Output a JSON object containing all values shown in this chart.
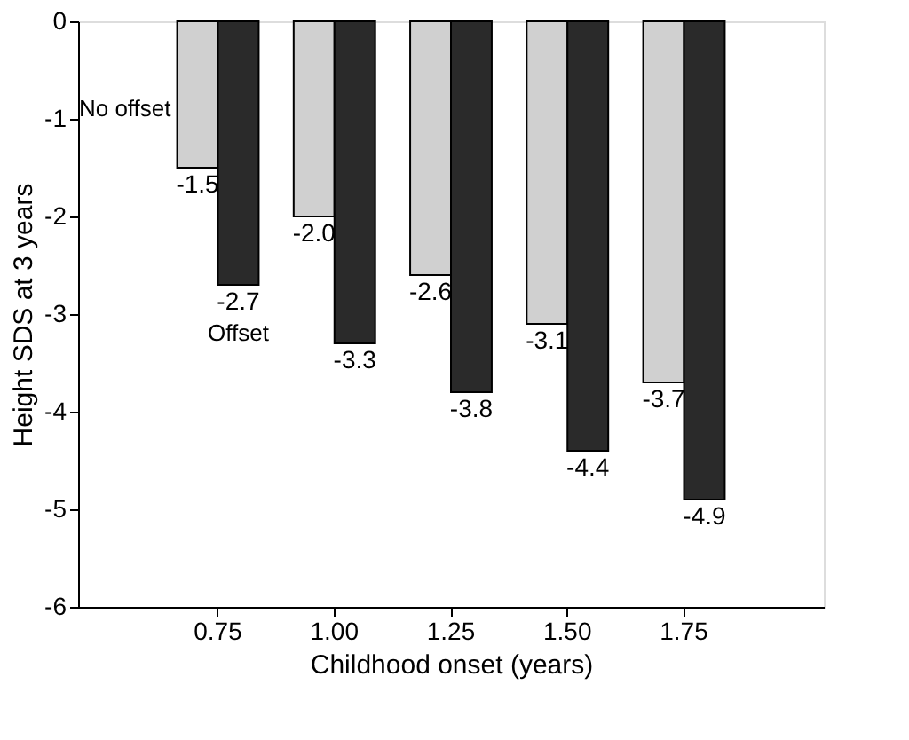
{
  "chart_data": {
    "type": "bar",
    "xlabel": "Childhood onset (years)",
    "ylabel": "Height SDS at 3 years",
    "categories": [
      "0.75",
      "1.00",
      "1.25",
      "1.50",
      "1.75"
    ],
    "series": [
      {
        "name": "No offset",
        "color": "#d0d0d0",
        "values": [
          -1.5,
          -2.0,
          -2.6,
          -3.1,
          -3.7
        ],
        "value_labels": [
          "-1.5",
          "-2.0",
          "-2.6",
          "-3.1",
          "-3.7"
        ]
      },
      {
        "name": "Offset",
        "color": "#2a2a2a",
        "values": [
          -2.7,
          -3.3,
          -3.8,
          -4.4,
          -4.9
        ],
        "value_labels": [
          "-2.7",
          "-3.3",
          "-3.8",
          "-4.4",
          "-4.9"
        ]
      }
    ],
    "ylim": [
      -6,
      0
    ],
    "yticks": [
      {
        "value": 0,
        "label": "0"
      },
      {
        "value": -1,
        "label": "-1"
      },
      {
        "value": -2,
        "label": "-2"
      },
      {
        "value": -3,
        "label": "-3"
      },
      {
        "value": -4,
        "label": "-4"
      },
      {
        "value": -5,
        "label": "-5"
      },
      {
        "value": -6,
        "label": "-6"
      }
    ],
    "data_labels": true,
    "grid": false,
    "legend": false
  }
}
